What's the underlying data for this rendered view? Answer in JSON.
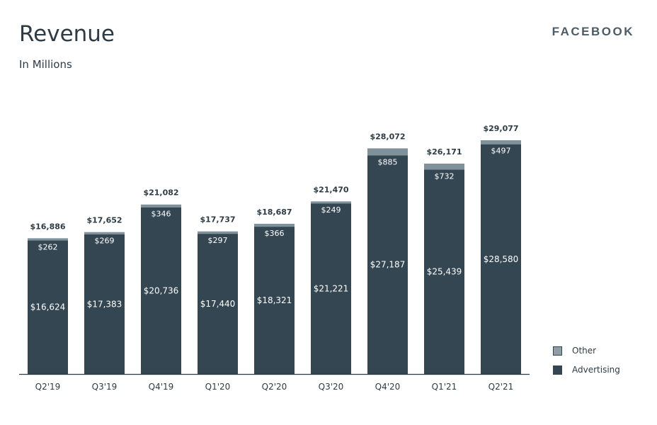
{
  "header": {
    "title": "Revenue",
    "subtitle": "In Millions",
    "brand": "FACEBOOK"
  },
  "colors": {
    "advertising": "#344652",
    "other": "#7f919b",
    "axis": "#2d3b45",
    "text_dark": "#2d3b45",
    "text_light": "#ffffff"
  },
  "legend": [
    {
      "name": "Other",
      "color": "#8f9ea6"
    },
    {
      "name": "Advertising",
      "color": "#344652"
    }
  ],
  "chart_data": {
    "type": "bar",
    "stacked": true,
    "categories": [
      "Q2'19",
      "Q3'19",
      "Q4'19",
      "Q1'20",
      "Q2'20",
      "Q3'20",
      "Q4'20",
      "Q1'21",
      "Q2'21"
    ],
    "series": [
      {
        "name": "Advertising",
        "values": [
          16624,
          17383,
          20736,
          17440,
          18321,
          21221,
          27187,
          25439,
          28580
        ],
        "labels": [
          "$16,624",
          "$17,383",
          "$20,736",
          "$17,440",
          "$18,321",
          "$21,221",
          "$27,187",
          "$25,439",
          "$28,580"
        ]
      },
      {
        "name": "Other",
        "values": [
          262,
          269,
          346,
          297,
          366,
          249,
          885,
          732,
          497
        ],
        "labels": [
          "$262",
          "$269",
          "$346",
          "$297",
          "$366",
          "$249",
          "$885",
          "$732",
          "$497"
        ]
      }
    ],
    "totals": [
      16886,
      17652,
      21082,
      17737,
      18687,
      21470,
      28072,
      26171,
      29077
    ],
    "total_labels": [
      "$16,886",
      "$17,652",
      "$21,082",
      "$17,737",
      "$18,687",
      "$21,470",
      "$28,072",
      "$26,171",
      "$29,077"
    ],
    "title": "Revenue",
    "subtitle": "In Millions",
    "ylim": [
      0,
      29077
    ],
    "grid": false,
    "legend_position": "bottom-right"
  }
}
